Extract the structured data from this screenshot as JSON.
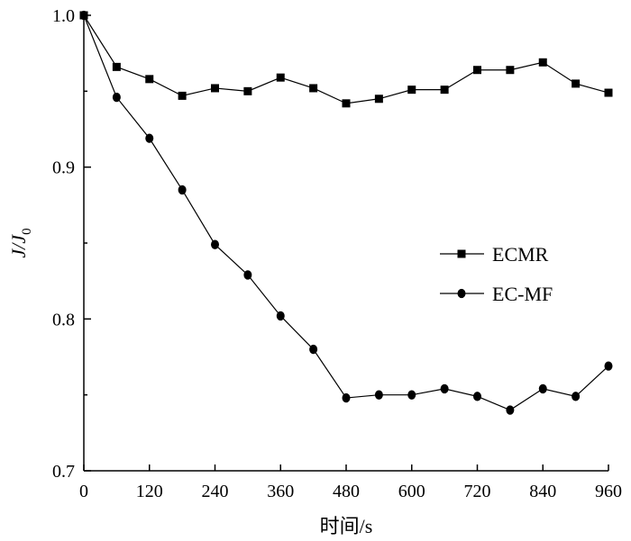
{
  "chart_data": {
    "type": "line",
    "xlabel": "时间/s",
    "ylabel": "J/J0",
    "ylabel_main": "J/J",
    "ylabel_sub": "0",
    "xlim": [
      0,
      960
    ],
    "ylim": [
      0.7,
      1.0
    ],
    "x_ticks": [
      0,
      120,
      240,
      360,
      480,
      600,
      720,
      840,
      960
    ],
    "x_tick_labels": [
      "0",
      "120",
      "240",
      "360",
      "480",
      "600",
      "720",
      "840",
      "960"
    ],
    "y_ticks": [
      0.7,
      0.8,
      0.9,
      1.0
    ],
    "y_tick_labels": [
      "0.7",
      "0.8",
      "0.9",
      "1.0"
    ],
    "grid": false,
    "legend_position": "right",
    "x": [
      0,
      60,
      120,
      180,
      240,
      300,
      360,
      420,
      480,
      540,
      600,
      660,
      720,
      780,
      840,
      900,
      960
    ],
    "series": [
      {
        "name": "ECMR",
        "marker": "square",
        "values": [
          1.0,
          0.966,
          0.958,
          0.947,
          0.952,
          0.95,
          0.959,
          0.952,
          0.942,
          0.945,
          0.951,
          0.951,
          0.964,
          0.964,
          0.969,
          0.955,
          0.949
        ]
      },
      {
        "name": "EC-MF",
        "marker": "circle",
        "values": [
          1.0,
          0.946,
          0.919,
          0.885,
          0.849,
          0.829,
          0.802,
          0.78,
          0.748,
          0.75,
          0.75,
          0.754,
          0.749,
          0.74,
          0.754,
          0.749,
          0.769
        ]
      }
    ]
  }
}
